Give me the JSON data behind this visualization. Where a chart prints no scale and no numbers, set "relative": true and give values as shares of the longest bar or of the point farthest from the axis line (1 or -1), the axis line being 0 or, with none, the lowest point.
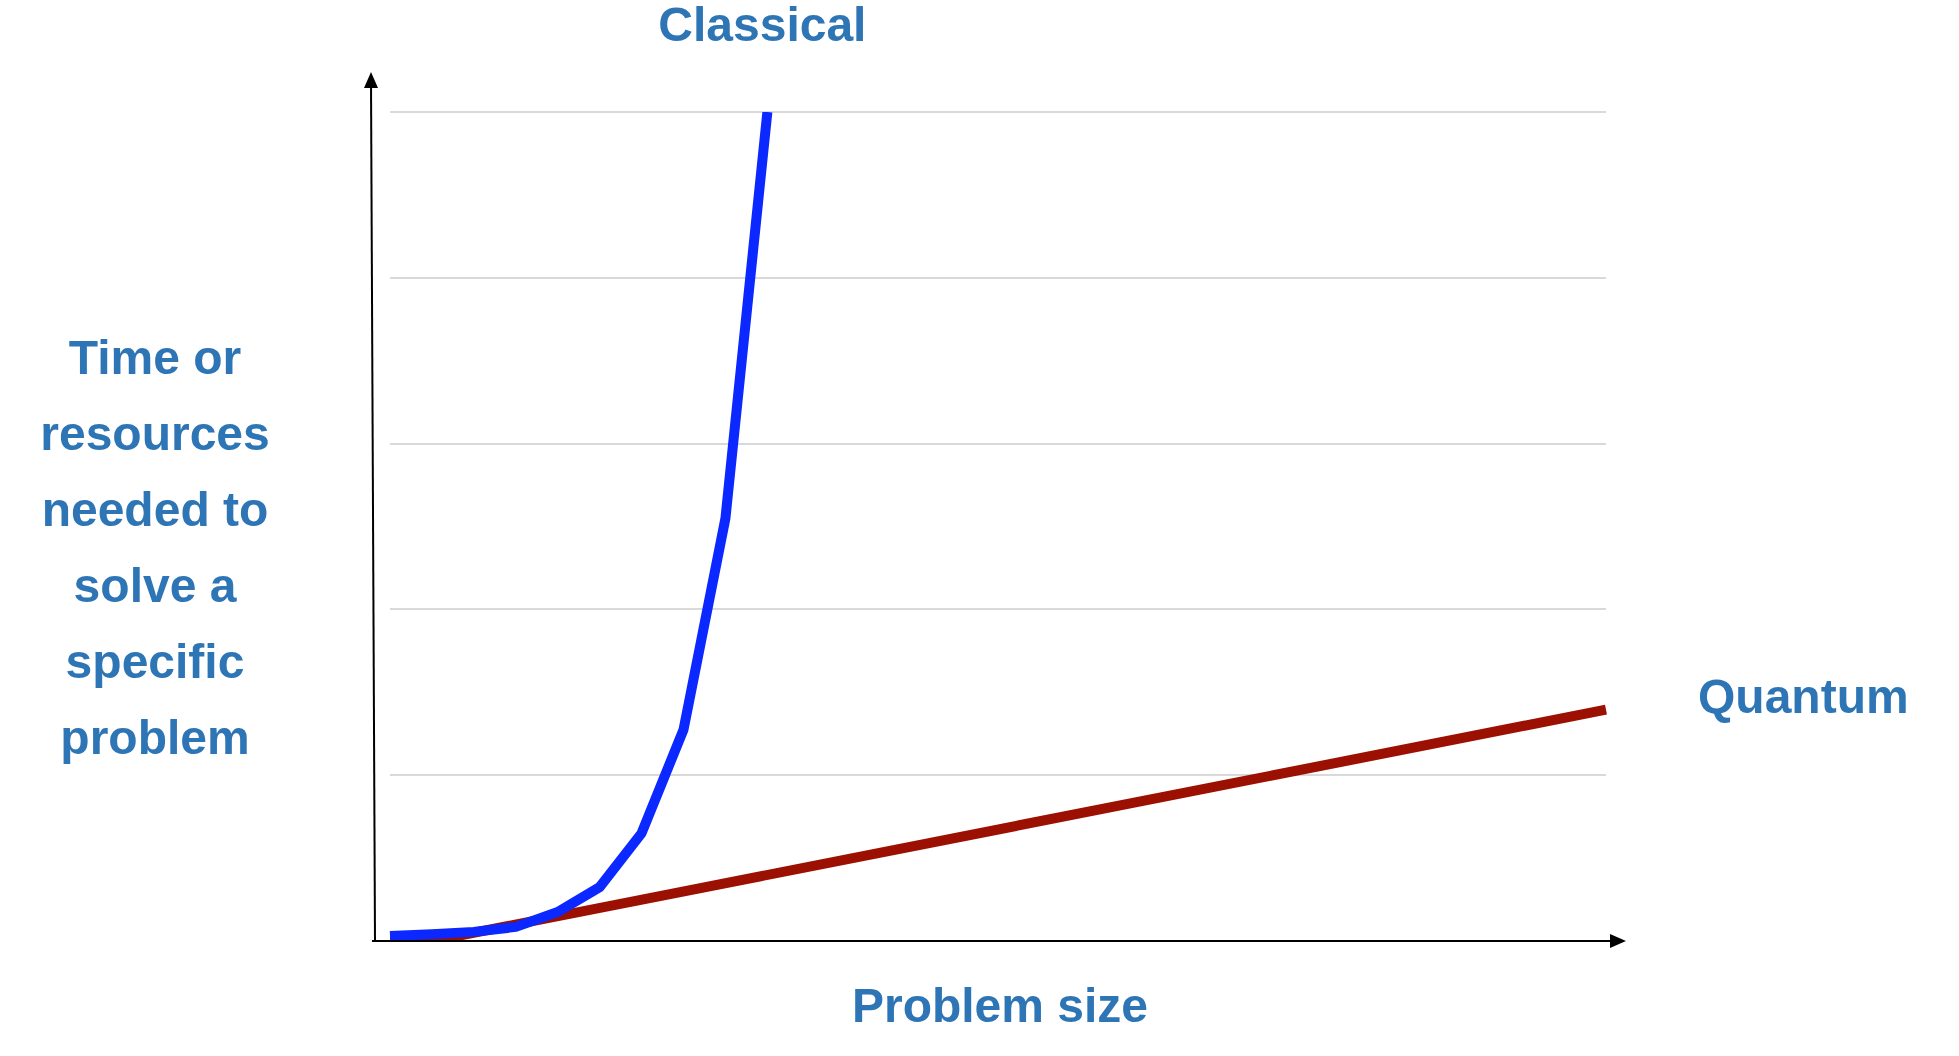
{
  "chart_data": {
    "type": "line",
    "relative": true,
    "xlabel": "Problem size",
    "ylabel": "Time or resources needed to solve a specific problem",
    "grid": "y",
    "legend": false,
    "marker": "none",
    "line_style": "solid",
    "categories": [
      null,
      null,
      null,
      null,
      null,
      null,
      null,
      null,
      null,
      null,
      null,
      null,
      null,
      null,
      null,
      null,
      null,
      null,
      null,
      null,
      null,
      null,
      null,
      null,
      null,
      null,
      null,
      null,
      null,
      null
    ],
    "series": [
      {
        "name": "Classical",
        "color": "#0a28ff",
        "values": [
          0.006,
          0.008,
          0.011,
          0.017,
          0.035,
          0.065,
          0.13,
          0.255,
          0.51,
          1.0,
          null,
          null,
          null,
          null,
          null,
          null,
          null,
          null,
          null,
          null,
          null,
          null,
          null,
          null,
          null,
          null,
          null,
          null,
          null,
          null
        ]
      },
      {
        "name": "Quantum",
        "color": "#9b1000",
        "values": [
          0,
          0,
          null,
          null,
          null,
          null,
          null,
          null,
          null,
          null,
          null,
          null,
          null,
          null,
          null,
          null,
          null,
          null,
          null,
          null,
          null,
          null,
          null,
          null,
          null,
          null,
          null,
          null,
          null,
          0.279
        ]
      }
    ]
  }
}
